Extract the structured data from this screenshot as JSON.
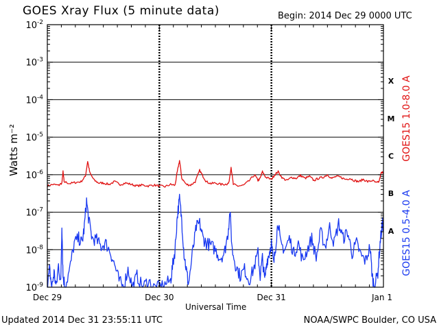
{
  "header": {
    "title": "GOES Xray Flux (5 minute data)",
    "begin": "Begin:  2014 Dec 29 0000 UTC"
  },
  "footer": {
    "updated": "Updated 2014 Dec 31 23:55:11 UTC",
    "credit": "NOAA/SWPC Boulder, CO USA"
  },
  "chart_data": {
    "type": "line",
    "title": "GOES Xray Flux (5 minute data)",
    "xlabel": "Universal Time",
    "ylabel": "Watts m⁻²",
    "y_scale": "log",
    "ylim": [
      1e-09,
      0.01
    ],
    "xlim_days": [
      0,
      3
    ],
    "x_ticks": [
      {
        "t": 0,
        "label": "Dec 29"
      },
      {
        "t": 1,
        "label": "Dec 30"
      },
      {
        "t": 2,
        "label": "Dec 31"
      },
      {
        "t": 3,
        "label": "Jan 1"
      }
    ],
    "y_ticks": [
      {
        "exp": -9,
        "label": "10",
        "sup": "-9"
      },
      {
        "exp": -8,
        "label": "10",
        "sup": "-8"
      },
      {
        "exp": -7,
        "label": "10",
        "sup": "-7"
      },
      {
        "exp": -6,
        "label": "10",
        "sup": "-6"
      },
      {
        "exp": -5,
        "label": "10",
        "sup": "-5"
      },
      {
        "exp": -4,
        "label": "10",
        "sup": "-4"
      },
      {
        "exp": -3,
        "label": "10",
        "sup": "-3"
      },
      {
        "exp": -2,
        "label": "10",
        "sup": "-2"
      }
    ],
    "flare_classes": [
      {
        "label": "X",
        "exp": -4
      },
      {
        "label": "M",
        "exp": -5
      },
      {
        "label": "C",
        "exp": -6
      },
      {
        "label": "B",
        "exp": -7
      },
      {
        "label": "A",
        "exp": -8
      }
    ],
    "grid": true,
    "series": [
      {
        "name": "GOES15 1.0-8.0 A",
        "color": "#e01010",
        "points": [
          [
            0.0,
            5e-07
          ],
          [
            0.05,
            5.5e-07
          ],
          [
            0.1,
            5.2e-07
          ],
          [
            0.13,
            6e-07
          ],
          [
            0.14,
            1.2e-06
          ],
          [
            0.15,
            6.5e-07
          ],
          [
            0.2,
            5.8e-07
          ],
          [
            0.25,
            6.2e-07
          ],
          [
            0.3,
            6.5e-07
          ],
          [
            0.34,
            9e-07
          ],
          [
            0.36,
            2.3e-06
          ],
          [
            0.38,
            1.1e-06
          ],
          [
            0.42,
            7e-07
          ],
          [
            0.46,
            6e-07
          ],
          [
            0.5,
            6e-07
          ],
          [
            0.55,
            5.5e-07
          ],
          [
            0.6,
            6.5e-07
          ],
          [
            0.65,
            5.5e-07
          ],
          [
            0.7,
            6e-07
          ],
          [
            0.75,
            5.5e-07
          ],
          [
            0.8,
            5e-07
          ],
          [
            0.85,
            5.3e-07
          ],
          [
            0.9,
            5e-07
          ],
          [
            0.95,
            5.3e-07
          ],
          [
            1.0,
            5e-07
          ],
          [
            1.05,
            4.8e-07
          ],
          [
            1.1,
            5.5e-07
          ],
          [
            1.14,
            5.2e-07
          ],
          [
            1.16,
            1.2e-06
          ],
          [
            1.18,
            2.4e-06
          ],
          [
            1.2,
            8e-07
          ],
          [
            1.24,
            5.5e-07
          ],
          [
            1.28,
            5.3e-07
          ],
          [
            1.32,
            6.5e-07
          ],
          [
            1.36,
            1.3e-06
          ],
          [
            1.39,
            9e-07
          ],
          [
            1.42,
            6.5e-07
          ],
          [
            1.46,
            5.8e-07
          ],
          [
            1.5,
            6e-07
          ],
          [
            1.55,
            5.5e-07
          ],
          [
            1.6,
            5.6e-07
          ],
          [
            1.62,
            6e-07
          ],
          [
            1.64,
            1.6e-06
          ],
          [
            1.66,
            5.5e-07
          ],
          [
            1.7,
            5e-07
          ],
          [
            1.75,
            5.2e-07
          ],
          [
            1.8,
            6.8e-07
          ],
          [
            1.85,
            1e-06
          ],
          [
            1.88,
            7e-07
          ],
          [
            1.9,
            8e-07
          ],
          [
            1.92,
            1.2e-06
          ],
          [
            1.95,
            8.5e-07
          ],
          [
            2.0,
            7.5e-07
          ],
          [
            2.03,
            1e-06
          ],
          [
            2.06,
            1.2e-06
          ],
          [
            2.1,
            8e-07
          ],
          [
            2.14,
            7e-07
          ],
          [
            2.18,
            8.5e-07
          ],
          [
            2.22,
            8e-07
          ],
          [
            2.26,
            9.5e-07
          ],
          [
            2.3,
            8e-07
          ],
          [
            2.34,
            9e-07
          ],
          [
            2.38,
            7e-07
          ],
          [
            2.42,
            8e-07
          ],
          [
            2.46,
            8.5e-07
          ],
          [
            2.5,
            1e-06
          ],
          [
            2.54,
            8e-07
          ],
          [
            2.58,
            9e-07
          ],
          [
            2.62,
            8.5e-07
          ],
          [
            2.66,
            7.5e-07
          ],
          [
            2.7,
            8e-07
          ],
          [
            2.74,
            7e-07
          ],
          [
            2.78,
            6.5e-07
          ],
          [
            2.82,
            7.5e-07
          ],
          [
            2.86,
            6.5e-07
          ],
          [
            2.9,
            7e-07
          ],
          [
            2.94,
            6e-07
          ],
          [
            2.96,
            6.5e-07
          ],
          [
            2.98,
            1.1e-06
          ],
          [
            3.0,
            1.2e-06
          ]
        ]
      },
      {
        "name": "GOES15 0.5-4.0 A",
        "color": "#1838f0",
        "points": [
          [
            0.0,
            1e-09
          ],
          [
            0.02,
            3e-09
          ],
          [
            0.04,
            1e-09
          ],
          [
            0.06,
            2.5e-09
          ],
          [
            0.08,
            1e-09
          ],
          [
            0.1,
            4e-09
          ],
          [
            0.12,
            1.2e-09
          ],
          [
            0.13,
            5e-08
          ],
          [
            0.14,
            2e-09
          ],
          [
            0.16,
            1e-09
          ],
          [
            0.2,
            3e-09
          ],
          [
            0.24,
            1.5e-08
          ],
          [
            0.28,
            2e-08
          ],
          [
            0.31,
            1.5e-08
          ],
          [
            0.33,
            4e-08
          ],
          [
            0.35,
            2e-07
          ],
          [
            0.37,
            6e-08
          ],
          [
            0.4,
            2e-08
          ],
          [
            0.44,
            1.8e-08
          ],
          [
            0.48,
            1.2e-08
          ],
          [
            0.52,
            1.5e-08
          ],
          [
            0.56,
            9e-09
          ],
          [
            0.6,
            4e-09
          ],
          [
            0.64,
            1.5e-09
          ],
          [
            0.68,
            1e-09
          ],
          [
            0.72,
            3e-09
          ],
          [
            0.76,
            1e-09
          ],
          [
            0.8,
            2e-09
          ],
          [
            0.85,
            1e-09
          ],
          [
            0.9,
            1.5e-09
          ],
          [
            0.95,
            1e-09
          ],
          [
            1.0,
            1e-09
          ],
          [
            1.05,
            1.2e-09
          ],
          [
            1.1,
            1.5e-09
          ],
          [
            1.12,
            4e-09
          ],
          [
            1.14,
            1e-08
          ],
          [
            1.16,
            8e-08
          ],
          [
            1.18,
            2.2e-07
          ],
          [
            1.2,
            6e-08
          ],
          [
            1.22,
            8e-09
          ],
          [
            1.24,
            3e-09
          ],
          [
            1.26,
            1.2e-09
          ],
          [
            1.3,
            1e-08
          ],
          [
            1.33,
            4e-08
          ],
          [
            1.36,
            5e-08
          ],
          [
            1.39,
            2e-08
          ],
          [
            1.42,
            1.5e-08
          ],
          [
            1.46,
            1.3e-08
          ],
          [
            1.5,
            1e-08
          ],
          [
            1.54,
            6e-09
          ],
          [
            1.58,
            8e-09
          ],
          [
            1.61,
            2.5e-08
          ],
          [
            1.63,
            1e-07
          ],
          [
            1.65,
            1e-08
          ],
          [
            1.68,
            4e-09
          ],
          [
            1.72,
            2e-09
          ],
          [
            1.76,
            3e-09
          ],
          [
            1.8,
            1.5e-09
          ],
          [
            1.84,
            3e-09
          ],
          [
            1.88,
            8e-09
          ],
          [
            1.9,
            2e-09
          ],
          [
            1.92,
            6e-09
          ],
          [
            1.94,
            1.5e-09
          ],
          [
            1.96,
            5e-09
          ],
          [
            1.98,
            8e-09
          ],
          [
            2.0,
            1.5e-08
          ],
          [
            2.02,
            4e-09
          ],
          [
            2.04,
            1.5e-08
          ],
          [
            2.06,
            6e-08
          ],
          [
            2.08,
            1.5e-08
          ],
          [
            2.12,
            1e-08
          ],
          [
            2.16,
            2e-08
          ],
          [
            2.2,
            8e-09
          ],
          [
            2.24,
            1.5e-08
          ],
          [
            2.28,
            5e-09
          ],
          [
            2.32,
            1e-08
          ],
          [
            2.36,
            2e-08
          ],
          [
            2.4,
            6e-09
          ],
          [
            2.44,
            3e-08
          ],
          [
            2.48,
            1.2e-08
          ],
          [
            2.52,
            4e-08
          ],
          [
            2.56,
            1.5e-08
          ],
          [
            2.6,
            5e-08
          ],
          [
            2.64,
            2e-08
          ],
          [
            2.68,
            3e-08
          ],
          [
            2.72,
            8e-09
          ],
          [
            2.76,
            1.5e-08
          ],
          [
            2.8,
            7e-09
          ],
          [
            2.84,
            5e-09
          ],
          [
            2.88,
            1.2e-08
          ],
          [
            2.9,
            2e-09
          ],
          [
            2.92,
            1e-09
          ],
          [
            2.95,
            2.5e-09
          ],
          [
            2.97,
            1.5e-08
          ],
          [
            2.99,
            5e-08
          ],
          [
            3.0,
            4e-08
          ]
        ]
      }
    ]
  }
}
